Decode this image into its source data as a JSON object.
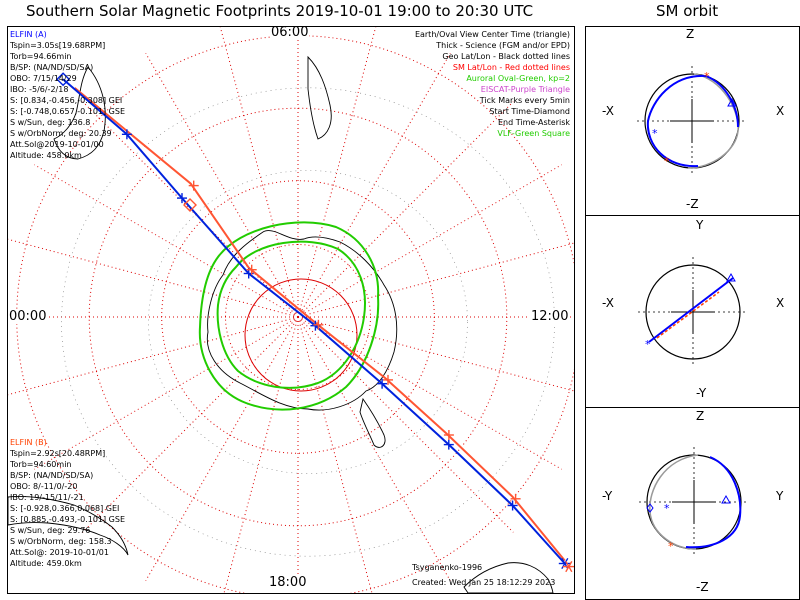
{
  "title": "Southern Solar Magnetic Footprints 2019-10-01 19:00 to 20:30 UTC",
  "orbit_title": "SM orbit",
  "colors": {
    "elfin_a": "#0000ff",
    "elfin_b": "#ff4000",
    "footprint_a": "#0022dd",
    "footprint_b": "#ff5533",
    "oval": "#22cc00",
    "grid": "#dd0000",
    "coast": "#000000",
    "orbit_a": "#0000ff",
    "orbit_b": "#ff4000",
    "orbit_shadow": "#9a9a9a"
  },
  "elfin_a": {
    "name": "ELFIN (A)",
    "lines": [
      "Tspin=3.05s[19.68RPM]",
      "Torb=94.66min",
      "B/SP: (NA/ND/SD/SA)",
      "OBO: 7/15/14/29",
      "IBO: -5/6/-2/18",
      "S: [0.834,-0.456,-0.308] GEI",
      "S: [-0.748,0.657,-0.101] GSE",
      "S w/Sun, deg: 136.8",
      "S w/OrbNorm, deg: 20.39",
      "Att.Sol@2019-10-01/00",
      "Altitude: 458.0km"
    ]
  },
  "elfin_b": {
    "name": "ELFIN (B)",
    "lines": [
      "Tspin=2.92s[20.48RPM]",
      "Torb=94.60min",
      "B/SP: (NA/ND/SD/SA)",
      "OBO: 8/-11/0/-20",
      "IBO: 19/-15/11/-21",
      "S: [-0.928,0.366,0.068] GEI",
      "S: [0.885,-0.493,-0.101] GSE",
      "S w/Sun, deg: 29.76",
      "S w/OrbNorm, deg: 158.3",
      "Att.Sol@: 2019-10-01/01",
      "Altitude: 459.0km"
    ]
  },
  "legend": [
    {
      "text": "Earth/Oval View Center Time (triangle)",
      "color": "#000000"
    },
    {
      "text": "Thick - Science (FGM and/or EPD)",
      "color": "#000000"
    },
    {
      "text": "Geo Lat/Lon - Black dotted lines",
      "color": "#000000"
    },
    {
      "text": "SM Lat/Lon - Red dotted lines",
      "color": "#ff0000"
    },
    {
      "text": "Auroral Oval-Green, kp=2",
      "color": "#22cc00"
    },
    {
      "text": "EISCAT-Purple Triangle",
      "color": "#cc44cc"
    },
    {
      "text": "Tick Marks every 5min",
      "color": "#000000"
    },
    {
      "text": "Start Time-Diamond",
      "color": "#000000"
    },
    {
      "text": "End Time-Asterisk",
      "color": "#000000"
    },
    {
      "text": "VLF-Green Square",
      "color": "#22cc00"
    }
  ],
  "mlt_labels": {
    "top": "06:00",
    "left": "00:00",
    "right": "12:00",
    "bottom": "18:00"
  },
  "model_label": "Tsyganenko-1996",
  "created": "Created: Wed Jan 25 18:12:29 2023",
  "orbit_panels": [
    {
      "top": "Z",
      "bottom": "-Z",
      "left": "-X",
      "right": "X"
    },
    {
      "top": "Y",
      "bottom": "-Y",
      "left": "-X",
      "right": "X"
    },
    {
      "top": "Z",
      "bottom": "-Z",
      "left": "-Y",
      "right": "Y"
    }
  ],
  "chart_data": {
    "type": "scatter",
    "projection": "polar, southern SM latitude, magnetic local time around the rim",
    "latitude_circles_deg": [
      -50,
      -60,
      -70,
      -80
    ],
    "mlt_axes": [
      "00:00",
      "06:00",
      "12:00",
      "18:00"
    ],
    "series": [
      {
        "name": "ELFIN (A)",
        "color": "#0000ff",
        "footprint_xy_norm": [
          [
            -0.81,
            -0.82
          ],
          [
            -0.59,
            -0.63
          ],
          [
            -0.4,
            -0.41
          ],
          [
            -0.17,
            -0.15
          ],
          [
            0.06,
            0.03
          ],
          [
            0.29,
            0.23
          ],
          [
            0.52,
            0.44
          ],
          [
            0.74,
            0.65
          ],
          [
            0.92,
            0.85
          ]
        ]
      },
      {
        "name": "ELFIN (B)",
        "color": "#ff4000",
        "footprint_xy_norm": [
          [
            -0.77,
            -0.79
          ],
          [
            -0.37,
            -0.46
          ],
          [
            -0.17,
            -0.17
          ],
          [
            0.06,
            0.02
          ],
          [
            0.3,
            0.21
          ],
          [
            0.51,
            0.4
          ],
          [
            0.74,
            0.62
          ],
          [
            0.92,
            0.84
          ]
        ]
      }
    ]
  }
}
